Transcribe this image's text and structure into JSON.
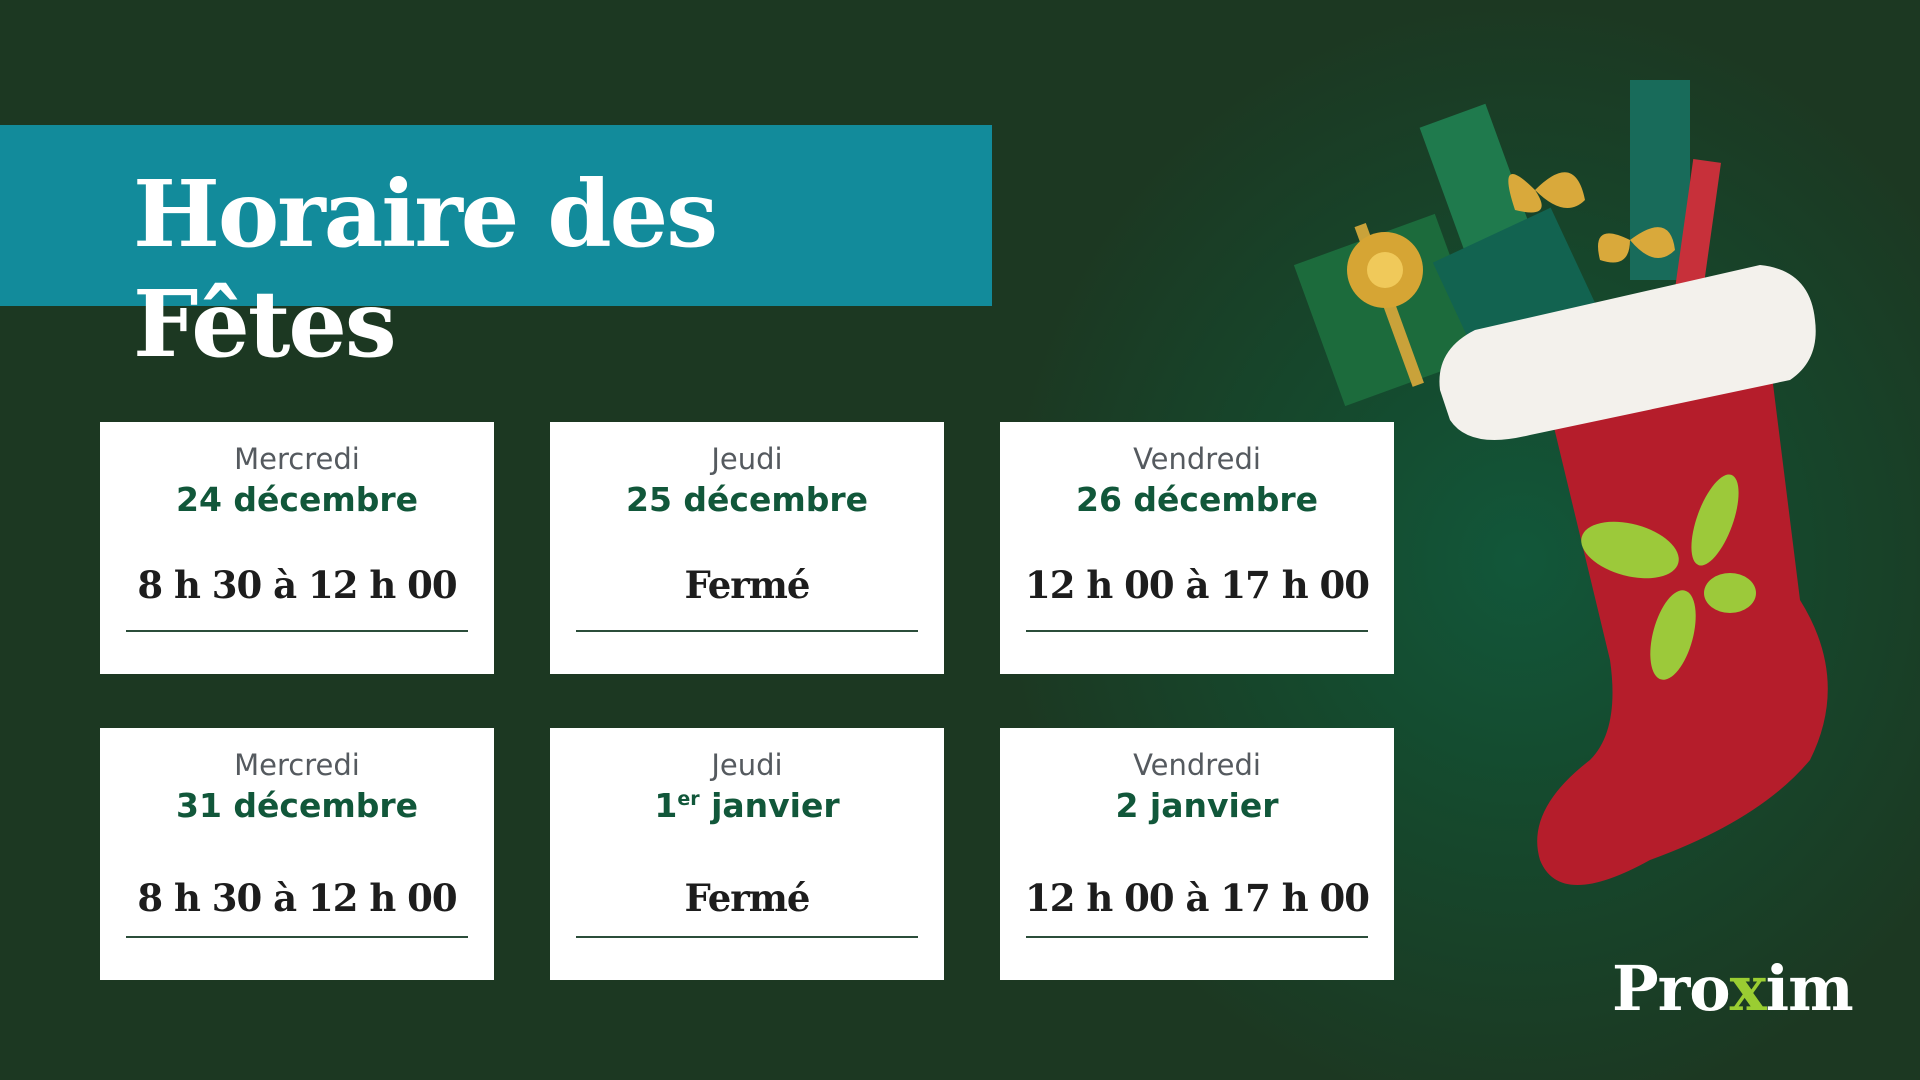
{
  "title": "Horaire des Fêtes",
  "schedule": [
    {
      "day": "Mercredi",
      "date": "24 décembre",
      "hours": "8 h 30 à 12 h 00"
    },
    {
      "day": "Jeudi",
      "date": "25 décembre",
      "hours": "Fermé"
    },
    {
      "day": "Vendredi",
      "date": "26 décembre",
      "hours": "12 h 00 à 17 h 00"
    },
    {
      "day": "Mercredi",
      "date": "31 décembre",
      "hours": "8 h 30 à 12 h 00"
    },
    {
      "day": "Jeudi",
      "date_num": "1",
      "date_sup": "er",
      "date_rest": " janvier",
      "hours": "Fermé"
    },
    {
      "day": "Vendredi",
      "date": "2 janvier",
      "hours": "12 h 00 à 17 h 00"
    }
  ],
  "logo": {
    "pre": "Pro",
    "x": "x",
    "post": "im"
  },
  "colors": {
    "background": "#1c3822",
    "banner": "#128b9b",
    "date": "#11573a",
    "stocking": "#b51d2b",
    "logo_accent": "#9acd32"
  }
}
